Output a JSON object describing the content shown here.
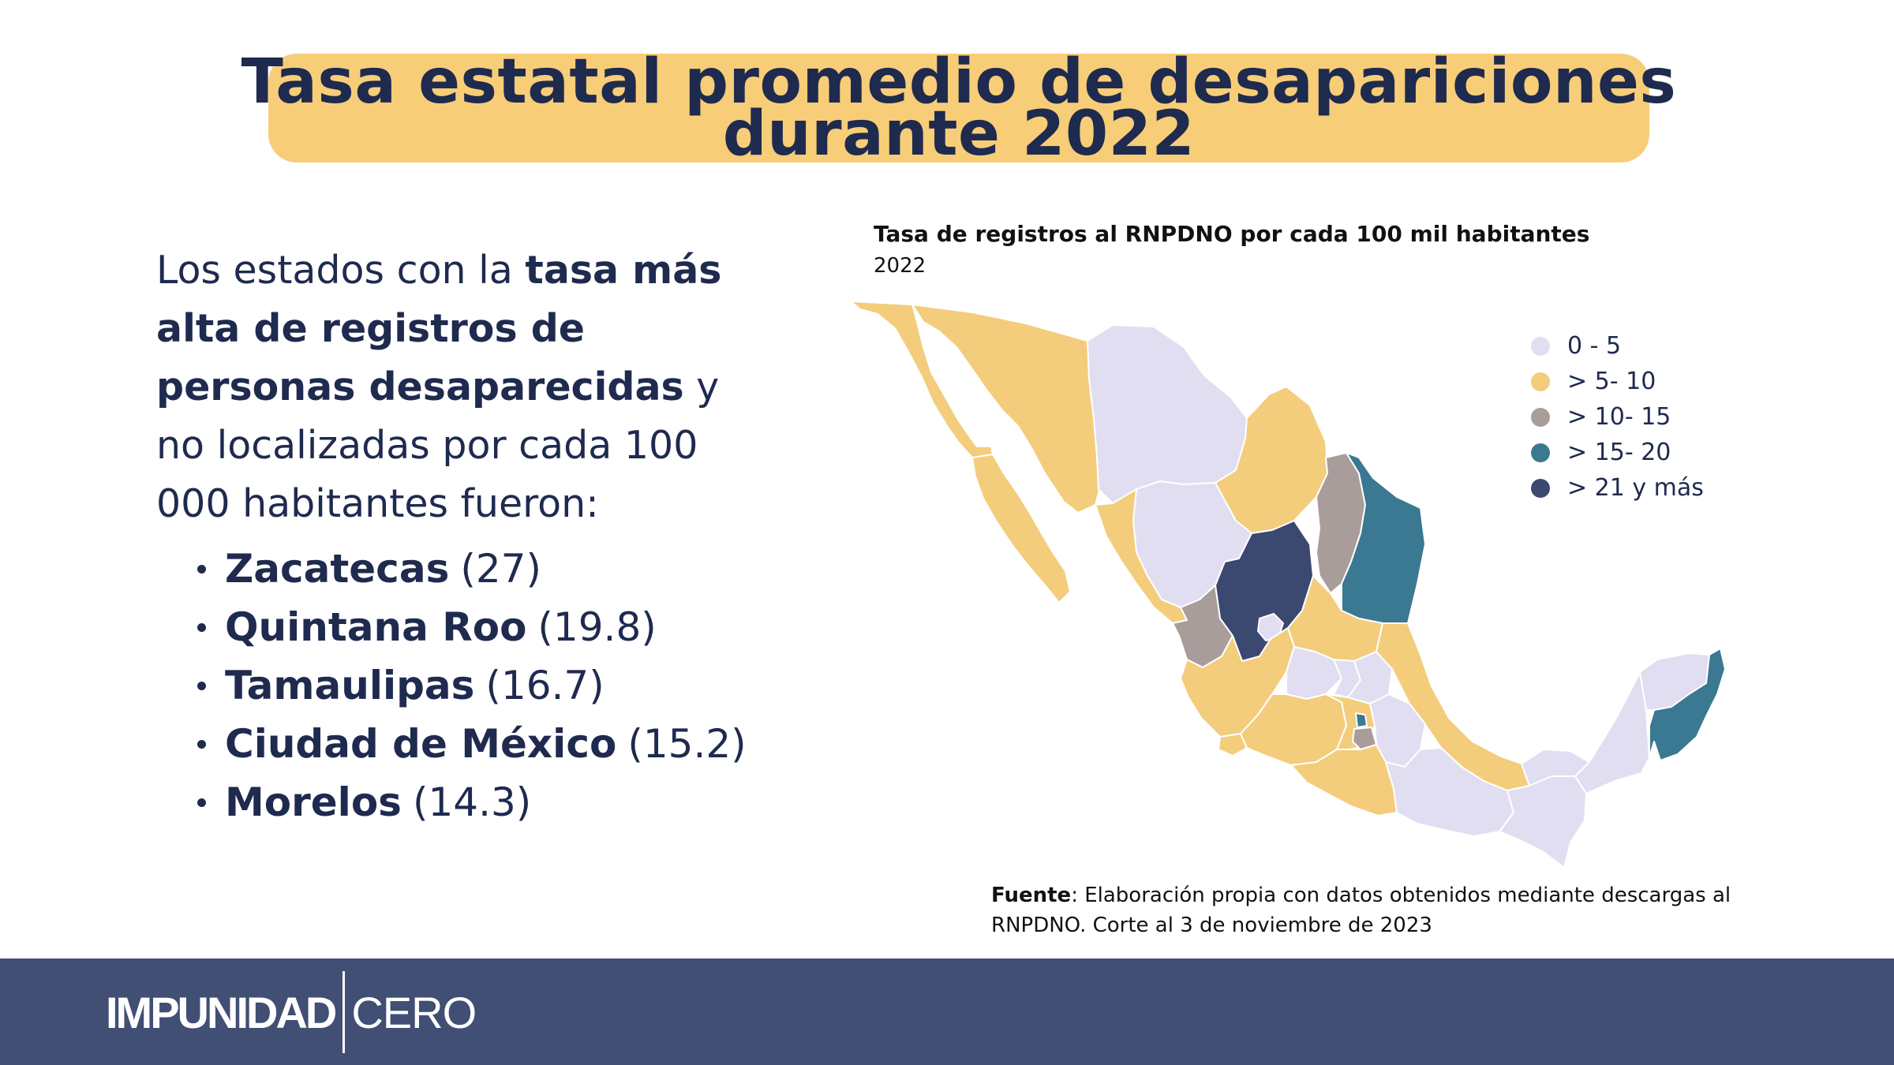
{
  "title": {
    "line1": "Tasa estatal promedio de desapariciones",
    "line2": "durante 2022"
  },
  "intro": {
    "part1": "Los estados con la ",
    "bold": "tasa más alta de registros de personas desaparecidas",
    "part2": " y no localizadas por cada 100 000 habitantes fueron:"
  },
  "top_states": [
    {
      "name": "Zacatecas",
      "value": "(27)"
    },
    {
      "name": "Quintana Roo",
      "value": "(19.8)"
    },
    {
      "name": "Tamaulipas",
      "value": "(16.7)"
    },
    {
      "name": "Ciudad de México",
      "value": "(15.2)"
    },
    {
      "name": "Morelos",
      "value": "(14.3)"
    }
  ],
  "map": {
    "title": "Tasa de registros al RNPDNO por cada 100 mil habitantes",
    "subtitle": "2022",
    "legend": [
      {
        "label": "0 - 5",
        "color": "#e1def1"
      },
      {
        "label": "> 5- 10",
        "color": "#f3cd7c"
      },
      {
        "label": "> 10- 15",
        "color": "#a99d9c"
      },
      {
        "label": "> 15- 20",
        "color": "#3b7891"
      },
      {
        "label": "> 21 y más",
        "color": "#3b486f"
      }
    ]
  },
  "source": {
    "label": "Fuente",
    "text": ": Elaboración propia con datos obtenidos mediante descargas al RNPDNO. Corte al 3 de noviembre de 2023"
  },
  "footer": {
    "logo_bold": "IMPUNIDAD",
    "logo_light": "CERO"
  }
}
